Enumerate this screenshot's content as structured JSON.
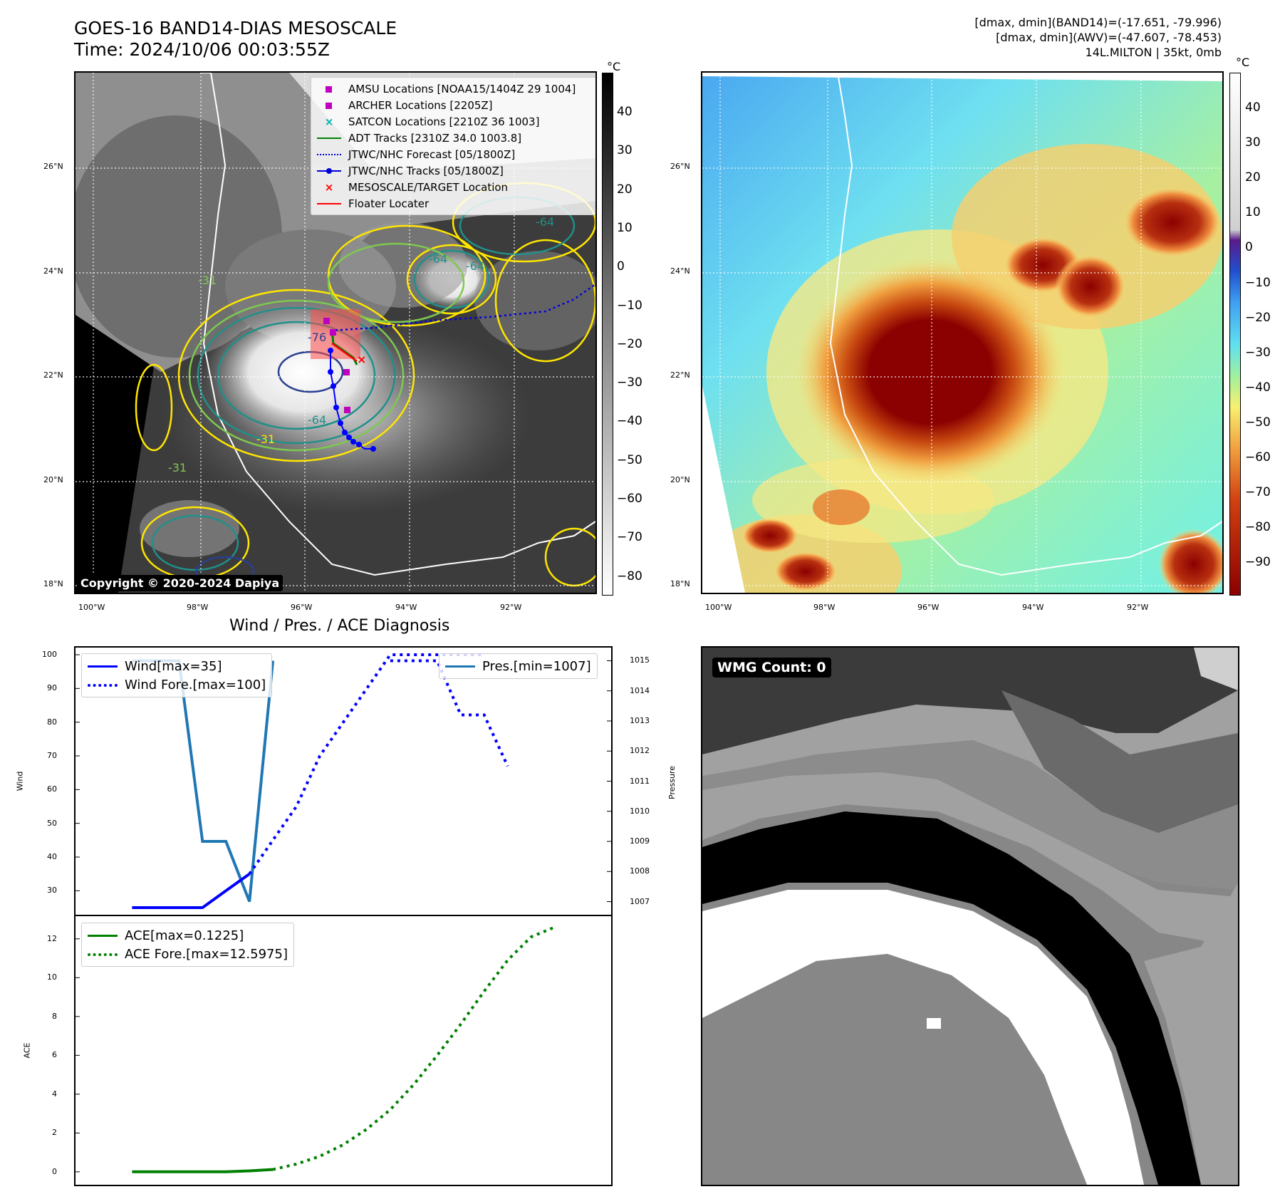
{
  "header": {
    "title": "GOES-16 BAND14-DIAS MESOSCALE",
    "time": "Time: 2024/10/06 00:03:55Z",
    "info_line1": "[dmax, dmin](BAND14)=(-17.651, -79.996)",
    "info_line2": "[dmax, dmin](AWV)=(-47.607, -78.453)",
    "info_line3": "14L.MILTON | 35kt, 0mb"
  },
  "map": {
    "lat_labels": [
      "26°N",
      "24°N",
      "22°N",
      "20°N",
      "18°N"
    ],
    "lon_labels": [
      "100°W",
      "98°W",
      "96°W",
      "94°W",
      "92°W"
    ],
    "copyright": "Copyright © 2020-2024 Dapiya",
    "contour_labels": [
      "-64",
      "-76",
      "-31",
      "-31",
      "-31",
      "-64",
      "-64",
      "-64"
    ],
    "legend": [
      {
        "label": "AMSU Locations [NOAA15/1404Z 29 1004]",
        "sym": "square",
        "color": "#c000c0"
      },
      {
        "label": "ARCHER Locations [2205Z]",
        "sym": "square",
        "color": "#c000c0"
      },
      {
        "label": "SATCON Locations [2210Z 36 1003]",
        "sym": "x",
        "color": "#00b0b0"
      },
      {
        "label": "ADT Tracks [2310Z 34.0 1003.8]",
        "sym": "line",
        "color": "#008000"
      },
      {
        "label": "JTWC/NHC Forecast [05/1800Z]",
        "sym": "dotted",
        "color": "#0000dd"
      },
      {
        "label": "JTWC/NHC Tracks [05/1800Z]",
        "sym": "dotline",
        "color": "#0000dd"
      },
      {
        "label": "MESOSCALE/TARGET Location",
        "sym": "x",
        "color": "#ff0000"
      },
      {
        "label": "Floater Locater",
        "sym": "line",
        "color": "#ff0000"
      }
    ]
  },
  "colorbar_gray": {
    "unit": "°C",
    "ticks": [
      "40",
      "30",
      "20",
      "10",
      "0",
      "−10",
      "−20",
      "−30",
      "−40",
      "−50",
      "−60",
      "−70",
      "−80"
    ]
  },
  "colorbar_color": {
    "unit": "°C",
    "ticks": [
      "40",
      "30",
      "20",
      "10",
      "0",
      "−10",
      "−20",
      "−30",
      "−40",
      "−50",
      "−60",
      "−70",
      "−80",
      "−90"
    ]
  },
  "colors": {
    "wind": "#0000ff",
    "pressure": "#1f77b4",
    "ace": "#008000",
    "map_track": "#0000dd"
  },
  "chart_data": [
    {
      "type": "line",
      "title": "Wind / Pres. / ACE Diagnosis",
      "ylabel": "Wind",
      "ylim": [
        25,
        100
      ],
      "yticks": [
        30,
        40,
        50,
        60,
        70,
        80,
        90,
        100
      ],
      "series": [
        {
          "name": "Wind[max=35]",
          "style": "solid",
          "x": [
            0,
            1,
            2,
            3,
            4,
            5
          ],
          "values": [
            25,
            25,
            25,
            25,
            30,
            35
          ]
        },
        {
          "name": "Wind Fore.[max=100]",
          "style": "dotted",
          "x": [
            5,
            6,
            7,
            8,
            9,
            10,
            11,
            12,
            13,
            14,
            15
          ],
          "values": [
            35,
            45,
            55,
            70,
            80,
            90,
            100,
            100,
            100,
            100,
            100
          ]
        }
      ],
      "y2label": "Pressure",
      "y2lim": [
        1006.8,
        1015.2
      ],
      "y2ticks": [
        1007,
        1008,
        1009,
        1010,
        1011,
        1012,
        1013,
        1014,
        1015
      ],
      "series_y2": [
        {
          "name": "Pres.[min=1007]",
          "style": "solid",
          "x": [
            0,
            1,
            2,
            3,
            4,
            5,
            6
          ],
          "values": [
            1015,
            1015,
            1015,
            1009,
            1009,
            1007,
            1015
          ]
        },
        {
          "name": "",
          "style": "dotted",
          "x": [
            11,
            12,
            13,
            14,
            15,
            16
          ],
          "values": [
            1015,
            1015,
            1015,
            1013.2,
            1013.2,
            1011.5
          ]
        }
      ]
    },
    {
      "type": "line",
      "ylabel": "ACE",
      "ylim": [
        -0.3,
        12.8
      ],
      "yticks": [
        0,
        2,
        4,
        6,
        8,
        10,
        12
      ],
      "series": [
        {
          "name": "ACE[max=0.1225]",
          "style": "solid",
          "x": [
            0,
            1,
            2,
            3,
            4,
            5,
            6
          ],
          "values": [
            0,
            0,
            0,
            0,
            0,
            0.05,
            0.12
          ]
        },
        {
          "name": "ACE Fore.[max=12.5975]",
          "style": "dotted",
          "x": [
            6,
            7,
            8,
            9,
            10,
            11,
            12,
            13,
            14,
            15,
            16,
            17,
            18
          ],
          "values": [
            0.12,
            0.4,
            0.8,
            1.4,
            2.2,
            3.2,
            4.5,
            6.0,
            7.6,
            9.3,
            10.9,
            12.1,
            12.6
          ]
        }
      ]
    }
  ],
  "wmg": {
    "label": "WMG Count: 0"
  }
}
